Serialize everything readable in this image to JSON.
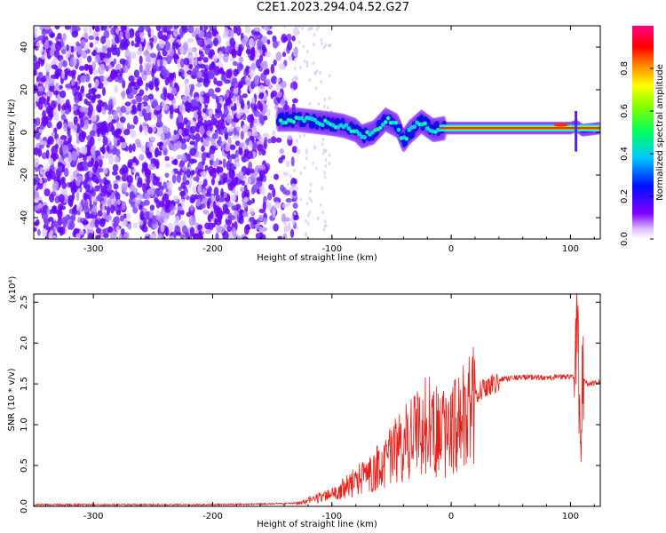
{
  "title": "C2E1.2023.294.04.52.G27",
  "colors": {
    "snr_line": "#e8201a",
    "scatter_palette": [
      "#6a00ff",
      "#5c10f0",
      "#8040ff",
      "#b890ff",
      "#dcc8ff"
    ]
  },
  "chart_data": [
    {
      "type": "heatmap",
      "xlabel": "Height of straight line (km)",
      "ylabel": "Frequency (Hz)",
      "xlim": [
        -350,
        125
      ],
      "ylim": [
        -50,
        50
      ],
      "xticks": [
        -300,
        -200,
        -100,
        0,
        100
      ],
      "yticks": [
        -40,
        -20,
        0,
        20,
        40
      ],
      "colorbar": {
        "label": "Normalized spectral amplitude",
        "range": [
          0.0,
          1.0
        ],
        "ticks": [
          0.0,
          0.2,
          0.4,
          0.6,
          0.8
        ],
        "colormap": "rainbow (purple-blue-cyan-green-yellow-red-magenta)"
      },
      "noise_region_x": [
        -350,
        -140
      ],
      "ridge": {
        "x": [
          -145,
          -130,
          -115,
          -100,
          -90,
          -80,
          -75,
          -65,
          -55,
          -45,
          -40,
          -35,
          -25,
          -15,
          -5,
          0,
          20,
          40,
          60,
          80,
          90,
          100,
          105,
          110,
          125
        ],
        "y": [
          6,
          6,
          5,
          4,
          3,
          1,
          -2,
          0,
          6,
          3,
          -4,
          0,
          5,
          1,
          2,
          2,
          2,
          2,
          2,
          2,
          2,
          2,
          3,
          1,
          2
        ],
        "peak_amplitude_x_range": [
          -10,
          125
        ]
      }
    },
    {
      "type": "line",
      "xlabel": "Height of straight line (km)",
      "ylabel": "SNR (10 * v/v)",
      "y_multiplier_label": "(x10⁴)",
      "xlim": [
        -350,
        125
      ],
      "ylim": [
        0,
        2.6
      ],
      "xticks": [
        -300,
        -200,
        -100,
        0,
        100
      ],
      "yticks": [
        0.0,
        0.5,
        1.0,
        1.5,
        2.0,
        2.5
      ],
      "series": [
        {
          "x": [
            -350,
            -300,
            -250,
            -200,
            -150,
            -130,
            -120,
            -110,
            -100,
            -90,
            -80,
            -70,
            -60,
            -50,
            -40,
            -30,
            -20,
            -10,
            0,
            10,
            20,
            30,
            40,
            50,
            60,
            70,
            80,
            90,
            100,
            104,
            106,
            108,
            110,
            115,
            125
          ],
          "y": [
            0.02,
            0.02,
            0.02,
            0.02,
            0.03,
            0.04,
            0.08,
            0.12,
            0.16,
            0.25,
            0.35,
            0.45,
            0.55,
            0.7,
            0.85,
            1.0,
            1.15,
            1.0,
            1.05,
            1.2,
            1.4,
            1.5,
            1.55,
            1.57,
            1.58,
            1.58,
            1.58,
            1.58,
            1.59,
            1.6,
            2.55,
            0.6,
            1.55,
            1.5,
            1.52
          ]
        }
      ]
    }
  ]
}
